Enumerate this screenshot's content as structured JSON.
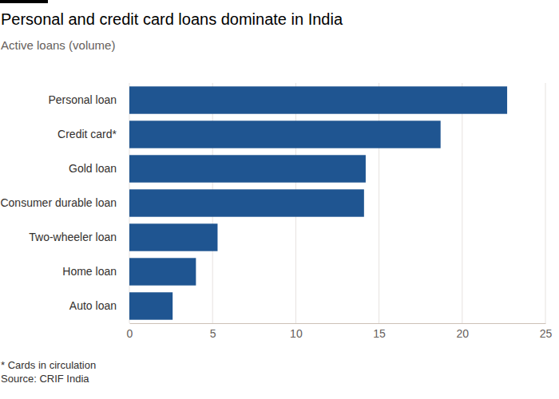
{
  "chart_data": {
    "type": "bar",
    "orientation": "horizontal",
    "title": "Personal and credit card loans dominate in India",
    "subtitle": "Active loans (volume)",
    "footnote": "* Cards in circulation",
    "source": "Source: CRIF India",
    "categories": [
      "Personal loan",
      "Credit card*",
      "Gold loan",
      "Consumer durable loan",
      "Two-wheeler loan",
      "Home loan",
      "Auto loan"
    ],
    "values": [
      22.7,
      18.7,
      14.2,
      14.1,
      5.3,
      4.0,
      2.6
    ],
    "color": "#1f5591",
    "xlim": [
      0,
      25
    ],
    "xticks": [
      0,
      5,
      10,
      15,
      20,
      25
    ],
    "grid": true
  }
}
